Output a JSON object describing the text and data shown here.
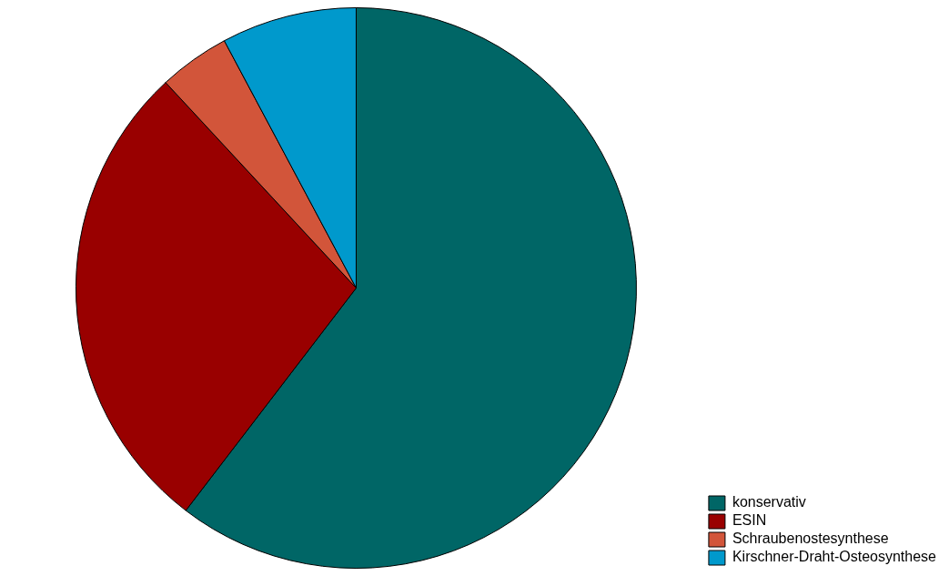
{
  "chart_data": {
    "type": "pie",
    "categories": [
      "konservativ",
      "ESIN",
      "Schraubenostesynthese",
      "Kirschner-Draht-Osteosynthese"
    ],
    "values": [
      60.4,
      27.7,
      4.1,
      7.8
    ],
    "colors": [
      "#006666",
      "#990000",
      "#d2553a",
      "#0099cc"
    ],
    "legend": "bottom right"
  }
}
